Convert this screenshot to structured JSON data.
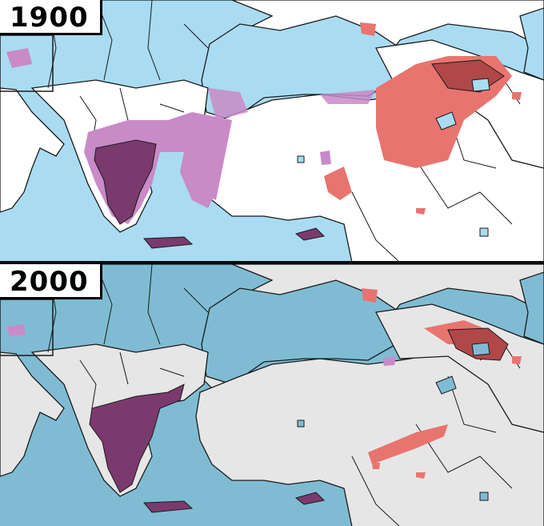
{
  "maps": [
    {
      "year": "1900",
      "theme": "color"
    },
    {
      "year": "2000",
      "theme": "muted"
    }
  ],
  "colors": {
    "sea_color": "#a9dcf2",
    "sea_muted": "#7fbcd3",
    "land_color": "#ffffff",
    "land_muted": "#e6e6e6",
    "greek_dark": "#7b3a6e",
    "greek_light": "#c98ac8",
    "armenian_dark": "#b04848",
    "armenian_light": "#e8746f",
    "border": "#1a1a1a"
  },
  "legend_meaning_hidden": ""
}
